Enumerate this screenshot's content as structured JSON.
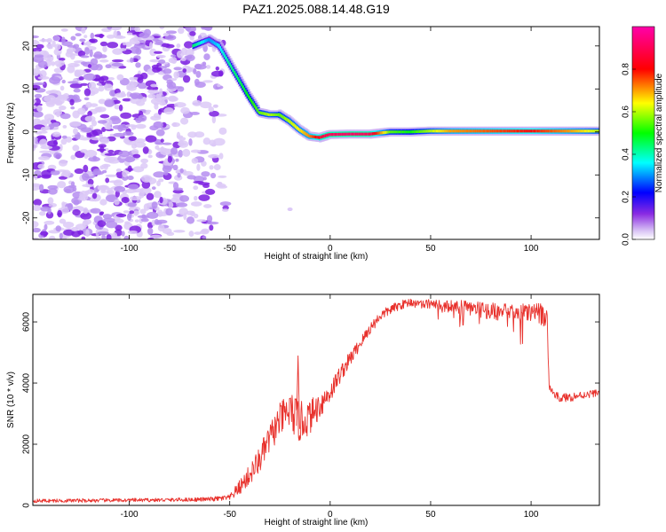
{
  "figure": {
    "title": "PAZ1.2025.088.14.48.G19"
  },
  "colors": {
    "snr_line": "#e8312c",
    "track_low": "#8a2be2",
    "noise": "#b58df0"
  },
  "chart_data": [
    {
      "type": "heatmap",
      "title": "",
      "xlabel": "Height of straight line (km)",
      "ylabel": "Frequency (Hz)",
      "xlim": [
        -148,
        134
      ],
      "ylim": [
        -25,
        24.5
      ],
      "xticks": [
        -100,
        -50,
        0,
        50,
        100
      ],
      "yticks": [
        -20,
        -10,
        0,
        10,
        20
      ],
      "colorbar": {
        "label": "Normalized spectral amplitude",
        "range": [
          0,
          1
        ],
        "ticks": [
          "0.0",
          "0.2",
          "0.4",
          "0.6",
          "0.8"
        ],
        "colors": [
          "#ffffff",
          "#8a2be2",
          "#0000ff",
          "#00ffff",
          "#00ff00",
          "#ffff00",
          "#ff0000",
          "#ff00ff"
        ]
      },
      "track": {
        "x": [
          -68,
          -60,
          -55,
          -50,
          -45,
          -40,
          -35,
          -30,
          -25,
          -20,
          -15,
          -10,
          -5,
          0,
          10,
          20,
          30,
          40,
          50,
          60,
          80,
          100,
          120,
          134
        ],
        "y": [
          20,
          21.5,
          20,
          16,
          12,
          8,
          4.5,
          4,
          4,
          2.5,
          0.5,
          -1,
          -1.3,
          -0.6,
          -0.5,
          -0.5,
          0,
          0,
          0.2,
          0.2,
          0.2,
          0.2,
          0.2,
          0.2
        ],
        "amplitude": [
          0.45,
          0.3,
          0.35,
          0.42,
          0.45,
          0.5,
          0.55,
          0.6,
          0.55,
          0.6,
          0.65,
          0.72,
          0.85,
          0.9,
          0.92,
          0.9,
          0.55,
          0.5,
          0.6,
          0.7,
          0.75,
          0.8,
          0.7,
          0.6
        ]
      },
      "noise_region_x": [
        -148,
        -52
      ]
    },
    {
      "type": "line",
      "title": "",
      "xlabel": "Height of straight line (km)",
      "ylabel": "SNR (10 * v/v)",
      "xlim": [
        -148,
        134
      ],
      "ylim": [
        0,
        6900
      ],
      "xticks": [
        -100,
        -50,
        0,
        50,
        100
      ],
      "yticks": [
        0,
        2000,
        4000,
        6000
      ],
      "series": [
        {
          "x": [
            -148,
            -120,
            -100,
            -80,
            -60,
            -50,
            -45,
            -40,
            -35,
            -30,
            -25,
            -20,
            -15,
            -10,
            -5,
            0,
            5,
            10,
            15,
            20,
            25,
            30,
            35,
            40,
            45,
            50,
            55,
            60,
            70,
            80,
            90,
            100,
            105,
            108,
            109,
            110,
            112,
            115,
            120,
            125,
            130,
            134
          ],
          "y": [
            150,
            160,
            170,
            180,
            200,
            250,
            600,
            1000,
            1500,
            2200,
            2800,
            3100,
            2700,
            2900,
            3300,
            3700,
            4300,
            4800,
            5300,
            5800,
            6200,
            6400,
            6550,
            6650,
            6550,
            6600,
            6500,
            6500,
            6450,
            6350,
            6300,
            6300,
            6250,
            6150,
            3800,
            3800,
            3600,
            3500,
            3550,
            3600,
            3650,
            3700
          ],
          "noise_amp": [
            60,
            60,
            60,
            60,
            70,
            100,
            250,
            350,
            450,
            500,
            550,
            650,
            700,
            550,
            450,
            350,
            300,
            250,
            200,
            200,
            170,
            160,
            150,
            150,
            150,
            160,
            200,
            220,
            250,
            280,
            300,
            320,
            350,
            350,
            120,
            120,
            120,
            150,
            150,
            130,
            120,
            120
          ]
        }
      ],
      "annotations": [
        {
          "x": -16,
          "y": 4900
        }
      ]
    }
  ]
}
